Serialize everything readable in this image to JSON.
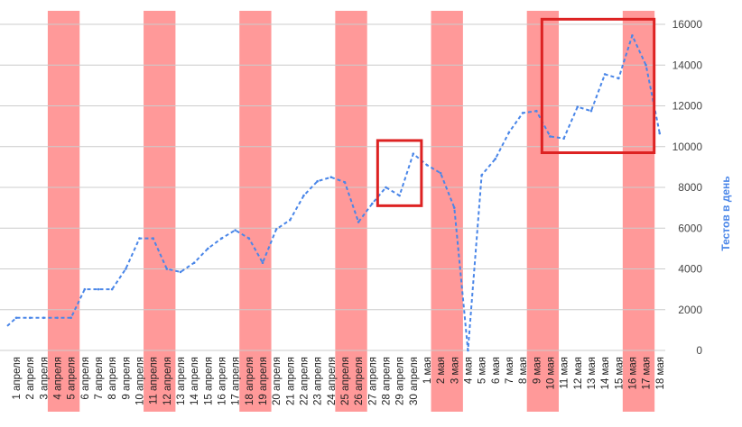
{
  "chart_data": {
    "type": "line",
    "title": "",
    "xlabel": "",
    "ylabel": "Тестов в день",
    "ylim": [
      0,
      16000
    ],
    "yticks": [
      0,
      2000,
      4000,
      6000,
      8000,
      10000,
      12000,
      14000,
      16000
    ],
    "y_axis_side": "right",
    "grid": true,
    "categories": [
      "1 апреля",
      "2 апреля",
      "3 апреля",
      "4 апреля",
      "5 апреля",
      "6 апреля",
      "7 апреля",
      "8 апреля",
      "9 апреля",
      "10 апреля",
      "11 апреля",
      "12 апреля",
      "13 апреля",
      "14 апреля",
      "15 апреля",
      "16 апреля",
      "17 апреля",
      "18 апреля",
      "19 апреля",
      "20 апреля",
      "21 апреля",
      "22 апреля",
      "23 апреля",
      "24 апреля",
      "25 апреля",
      "26 апреля",
      "27 апреля",
      "28 апреля",
      "29 апреля",
      "30 апреля",
      "1 мая",
      "2 мая",
      "3 мая",
      "4 мая",
      "5 мая",
      "6 мая",
      "7 мая",
      "8 мая",
      "9 мая",
      "10 мая",
      "11 мая",
      "12 мая",
      "13 мая",
      "14 мая",
      "15 мая",
      "16 мая",
      "17 мая",
      "18 мая"
    ],
    "series": [
      {
        "color": "#4a86e8",
        "style": "dashed",
        "values": [
          1600,
          1600,
          1600,
          1600,
          1600,
          3000,
          3000,
          3000,
          4000,
          5500,
          5500,
          4000,
          3850,
          4300,
          5000,
          5500,
          5900,
          5500,
          4300,
          5950,
          6400,
          7600,
          8300,
          8500,
          8250,
          6300,
          7200,
          8000,
          7600,
          9650,
          9100,
          8700,
          7000,
          0,
          8600,
          9400,
          10700,
          11650,
          11750,
          10500,
          10400,
          11950,
          11750,
          13550,
          13350,
          15450,
          14000,
          10650
        ]
      }
    ],
    "y_start_value": 1200,
    "highlight_bands": [
      {
        "from": "4 апреля",
        "to": "5 апреля",
        "color": "#ff9999"
      },
      {
        "from": "11 апреля",
        "to": "12 апреля",
        "color": "#ff9999"
      },
      {
        "from": "18 апреля",
        "to": "19 апреля",
        "color": "#ff9999"
      },
      {
        "from": "25 апреля",
        "to": "26 апреля",
        "color": "#ff9999"
      },
      {
        "from": "2 мая",
        "to": "3 мая",
        "color": "#ff9999"
      },
      {
        "from": "9 мая",
        "to": "10 мая",
        "color": "#ff9999"
      },
      {
        "from": "16 мая",
        "to": "17 мая",
        "color": "#ff9999"
      }
    ],
    "highlight_boxes": [
      {
        "from": "28 апреля",
        "to": "30 апреля",
        "y_range": [
          7100,
          10300
        ],
        "color": "#dd2222"
      },
      {
        "from": "10 мая",
        "to": "17 мая",
        "y_range": [
          9700,
          16250
        ],
        "color": "#dd2222"
      }
    ]
  }
}
